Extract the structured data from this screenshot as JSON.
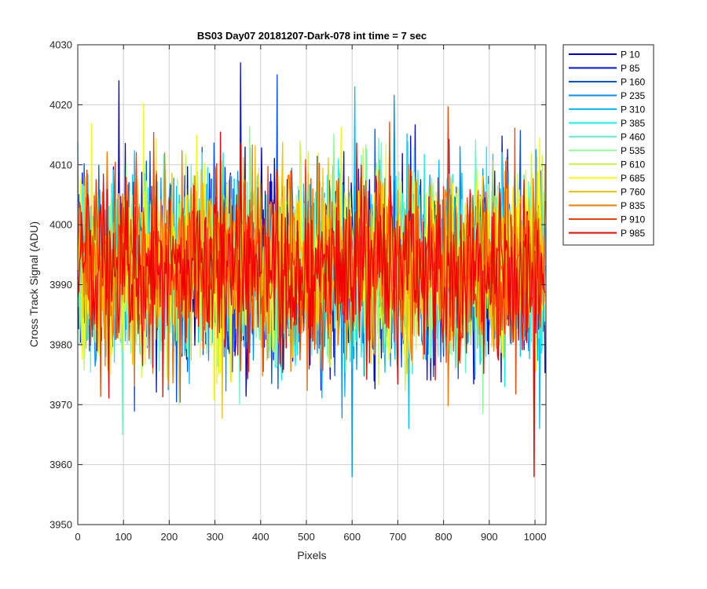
{
  "chart_data": {
    "type": "line",
    "title": "BS03 Day07 20181207-Dark-078 int time = 7 sec",
    "xlabel": "Pixels",
    "ylabel": "Cross Track Signal (ADU)",
    "xlim": [
      0,
      1024
    ],
    "ylim": [
      3950,
      4030
    ],
    "xticks": [
      "0",
      "100",
      "200",
      "300",
      "400",
      "500",
      "600",
      "700",
      "800",
      "900",
      "1000"
    ],
    "yticks": [
      "3950",
      "3960",
      "3970",
      "3980",
      "3990",
      "4000",
      "4010",
      "4020",
      "4030"
    ],
    "grid": true,
    "legend_position": "outside-top-right",
    "mean_signal": 3993,
    "n_pixels": 1024,
    "series": [
      {
        "name": "P 10",
        "color": "#0000bf"
      },
      {
        "name": "P 85",
        "color": "#0012e6"
      },
      {
        "name": "P 160",
        "color": "#0050ff"
      },
      {
        "name": "P 235",
        "color": "#0090ff"
      },
      {
        "name": "P 310",
        "color": "#00c0ff"
      },
      {
        "name": "P 385",
        "color": "#10f0f0"
      },
      {
        "name": "P 460",
        "color": "#60f8c8"
      },
      {
        "name": "P 535",
        "color": "#90f890"
      },
      {
        "name": "P 610",
        "color": "#c8f850"
      },
      {
        "name": "P 685",
        "color": "#f8f810"
      },
      {
        "name": "P 760",
        "color": "#f8c000"
      },
      {
        "name": "P 835",
        "color": "#f87800"
      },
      {
        "name": "P 910",
        "color": "#f84000"
      },
      {
        "name": "P 985",
        "color": "#f00000"
      }
    ],
    "annotated_extremes": [
      {
        "x": 90,
        "y": 4024
      },
      {
        "x": 355,
        "y": 4027
      },
      {
        "x": 435,
        "y": 4025
      },
      {
        "x": 600,
        "y": 3958
      },
      {
        "x": 605,
        "y": 4023
      },
      {
        "x": 998,
        "y": 3958
      },
      {
        "x": 97,
        "y": 3965
      }
    ]
  }
}
